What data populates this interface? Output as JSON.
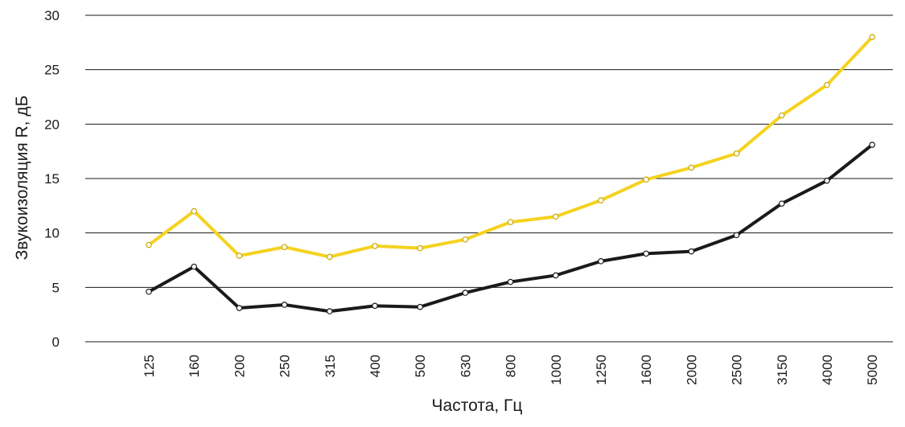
{
  "chart_data": {
    "type": "line",
    "title": "",
    "xlabel": "Частота, Гц",
    "ylabel": "Звукоизоляция R, дБ",
    "ylim": [
      0,
      30
    ],
    "yticks": [
      "0",
      "5",
      "10",
      "15",
      "20",
      "25",
      "30"
    ],
    "grid": true,
    "categories": [
      "125",
      "160",
      "200",
      "250",
      "315",
      "400",
      "500",
      "630",
      "800",
      "1000",
      "1250",
      "1600",
      "2000",
      "2500",
      "3150",
      "4000",
      "5000"
    ],
    "series": [
      {
        "color": "#f5d21f",
        "values": [
          8.9,
          12.0,
          7.9,
          8.7,
          7.8,
          8.8,
          8.6,
          9.4,
          11.0,
          11.5,
          13.0,
          14.9,
          16.0,
          17.3,
          20.8,
          23.6,
          28.0
        ]
      },
      {
        "color": "#1a1a1a",
        "values": [
          4.6,
          6.9,
          3.1,
          3.4,
          2.8,
          3.3,
          3.2,
          4.5,
          5.5,
          6.1,
          7.4,
          8.1,
          8.3,
          9.8,
          12.7,
          14.8,
          18.1
        ]
      }
    ]
  }
}
